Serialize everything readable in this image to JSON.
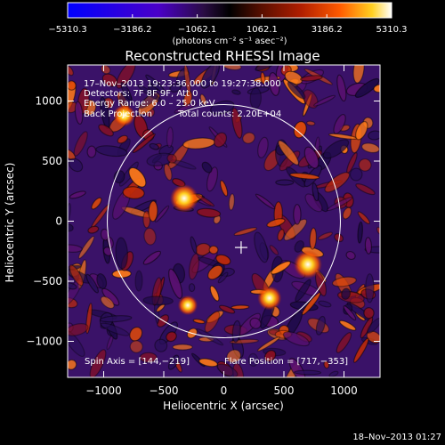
{
  "chart_data": {
    "type": "heatmap",
    "title": "Reconstructed RHESSI Image",
    "xlabel": "Heliocentric X (arcsec)",
    "ylabel": "Heliocentric Y (arcsec)",
    "xlim": [
      -1300,
      1300
    ],
    "ylim": [
      -1300,
      1300
    ],
    "x_ticks": [
      -1000,
      -500,
      0,
      500,
      1000
    ],
    "y_ticks": [
      -1000,
      -500,
      0,
      500,
      1000
    ],
    "x_tick_labels": [
      "−1000",
      "−500",
      "0",
      "500",
      "1000"
    ],
    "y_tick_labels": [
      "−1000",
      "−500",
      "0",
      "500",
      "1000"
    ],
    "colorbar": {
      "min": -5310.3,
      "max": 5310.3,
      "tick_labels": [
        "−5310.3",
        "−3186.2",
        "−1062.1",
        "1062.1",
        "3186.2",
        "5310.3"
      ],
      "ticks": [
        -5310.3,
        -3186.2,
        -1062.1,
        1062.1,
        3186.2,
        5310.3
      ],
      "units_label": "(photons cm⁻² s⁻¹ asec⁻²)",
      "colors": [
        "#0000ff",
        "#4a00c8",
        "#3c1a6e",
        "#000000",
        "#5a0f00",
        "#b01e00",
        "#ff5a00",
        "#ffd020",
        "#ffffff"
      ]
    },
    "info_lines": [
      "17–Nov–2013 19:23:36.000 to 19:27:38.000",
      "Detectors: 7F 8F 9F, Att 0",
      "Energy Range: 6.0 – 25.0 keV",
      "Back Projection"
    ],
    "total_counts": "Total counts: 2.20E+04",
    "spin_axis": "Spin Axis = [144,−219]",
    "flare_position_label": "Flare Position = [717,−353]",
    "flare_position": [
      717,
      -353
    ],
    "solar_disk": {
      "center": [
        0,
        0
      ],
      "radius_arcsec": 970
    },
    "sun_center_marker": [
      144,
      -219
    ],
    "bright_sources": [
      {
        "x": -330,
        "y": 190,
        "strength": 1.0
      },
      {
        "x": 700,
        "y": -360,
        "strength": 1.0
      },
      {
        "x": 380,
        "y": -640,
        "strength": 0.8
      },
      {
        "x": -830,
        "y": 880,
        "strength": 0.7
      },
      {
        "x": -300,
        "y": -700,
        "strength": 0.6
      }
    ]
  },
  "timestamp": "18–Nov–2013 01:27",
  "colors": {
    "background": "#000000",
    "foreground": "#ffffff",
    "field_base": "#3a1268"
  }
}
